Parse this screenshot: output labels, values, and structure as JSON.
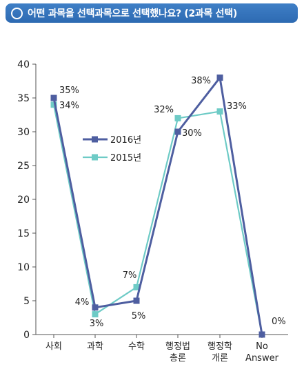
{
  "header": {
    "title": "어떤 과목을 선택과목으로 선택했나요? (2과목 선택)",
    "icon": "circle-icon",
    "bar_color": "#3572bb"
  },
  "chart_data": {
    "type": "line",
    "title": "어떤 과목을 선택과목으로 선택했나요? (2과목 선택)",
    "categories": [
      [
        "사회"
      ],
      [
        "과학"
      ],
      [
        "수학"
      ],
      [
        "행정법",
        "총론"
      ],
      [
        "행정학",
        "개론"
      ],
      [
        "No",
        "Answer"
      ]
    ],
    "ylim": [
      0,
      40
    ],
    "yticks": [
      0,
      5,
      10,
      15,
      20,
      25,
      30,
      35,
      40
    ],
    "grid": false,
    "legend_position": "upper-middle",
    "series": [
      {
        "name": "2016년",
        "color": "#4e5ea0",
        "values": [
          35,
          4,
          5,
          30,
          38,
          0
        ],
        "labels": [
          "35%",
          "4%",
          "5%",
          "30%",
          "38%",
          "0%"
        ]
      },
      {
        "name": "2015년",
        "color": "#6ecbc6",
        "values": [
          34,
          3,
          7,
          32,
          33,
          0
        ],
        "labels": [
          "34%",
          "3%",
          "7%",
          "32%",
          "33%",
          ""
        ]
      }
    ]
  }
}
